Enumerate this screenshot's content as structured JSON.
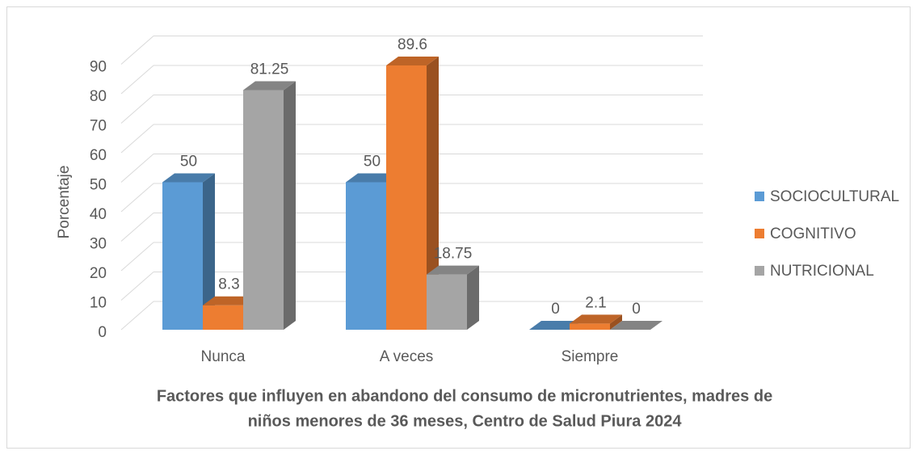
{
  "chart_data": {
    "type": "bar3d",
    "title": [
      "Factores que influyen en abandono del consumo de micronutrientes, madres de",
      "niños menores de 36 meses, Centro de Salud Piura 2024"
    ],
    "y_label": "Porcentaje",
    "categories": [
      "Nunca",
      "A veces",
      "Siempre"
    ],
    "series": [
      {
        "name": "SOCIOCULTURAL",
        "color": "#5b9bd5",
        "values": [
          50,
          50,
          0
        ]
      },
      {
        "name": "COGNITIVO",
        "color": "#ed7d31",
        "values": [
          8.3,
          89.6,
          2.1
        ]
      },
      {
        "name": "NUTRICIONAL",
        "color": "#a5a5a5",
        "values": [
          81.25,
          18.75,
          0
        ]
      }
    ],
    "ylim": [
      0,
      90
    ],
    "yticks": [
      0,
      10,
      20,
      30,
      40,
      50,
      60,
      70,
      80,
      90
    ],
    "grid": true,
    "legend": "right"
  }
}
